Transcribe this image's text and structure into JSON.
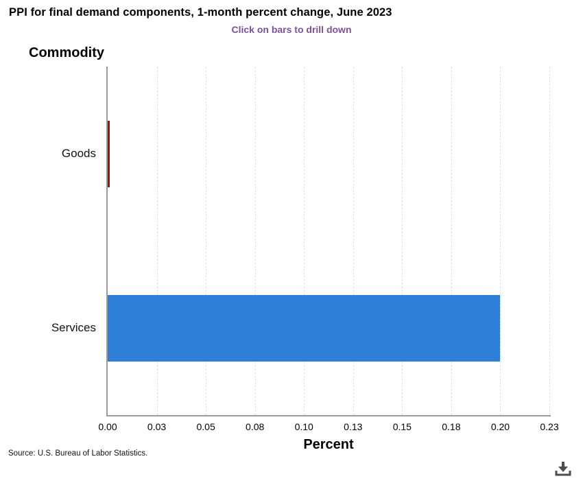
{
  "header": {
    "title": "PPI for final demand components, 1-month percent change, June 2023",
    "subtitle": "Click on bars to drill down"
  },
  "chart_data": {
    "type": "bar",
    "orientation": "horizontal",
    "title": "PPI for final demand components, 1-month percent change, June 2023",
    "subtitle": "Click on bars to drill down",
    "categories": [
      "Goods",
      "Services"
    ],
    "values": [
      0.0,
      0.2
    ],
    "bar_colors": [
      "#a80c10",
      "#2f7ed8"
    ],
    "xlabel": "Percent",
    "ylabel": "Commodity",
    "xlim": [
      0,
      0.225
    ],
    "x_ticks": [
      "0.00",
      "0.03",
      "0.05",
      "0.08",
      "0.10",
      "0.13",
      "0.15",
      "0.18",
      "0.20",
      "0.23"
    ],
    "grid": "vertical-dashed",
    "legend": "none"
  },
  "footer": {
    "source": "Source: U.S. Bureau of Labor Statistics."
  },
  "icons": {
    "download": "download-icon"
  },
  "colors": {
    "subtitle_text": "#7d4f9e",
    "axis_line": "#9b9b9b",
    "gridline": "#e2e2e2",
    "bar_goods": "#a80c10",
    "bar_services": "#2f7ed8",
    "download_icon": "#4d4d4d"
  }
}
